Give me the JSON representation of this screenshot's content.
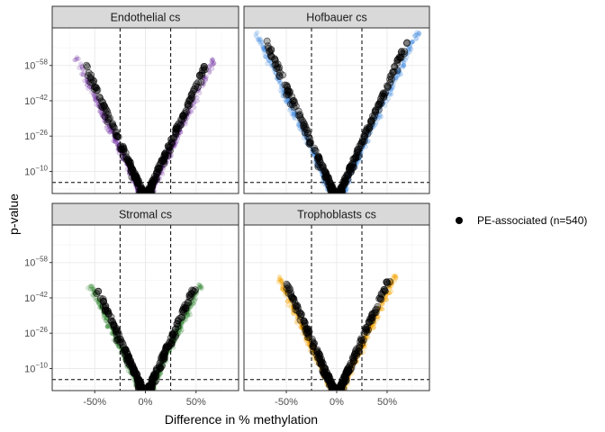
{
  "chart_data": {
    "type": "scatter",
    "xlabel": "Difference in % methylation",
    "ylabel": "p-value",
    "x_ticks": [
      "-50%",
      "0%",
      "50%"
    ],
    "x_tick_values": [
      -0.5,
      0,
      0.5
    ],
    "xlim": [
      -0.92,
      0.92
    ],
    "y_ticks": [
      "10−10",
      "10−26",
      "10−42",
      "10−58"
    ],
    "y_tick_exponents": [
      -10,
      -26,
      -42,
      -58
    ],
    "ylim_neglog10": [
      0,
      75
    ],
    "vlines": [
      -0.25,
      0.25
    ],
    "hline_neglog10": 5,
    "grid": true,
    "legend": {
      "position": "right",
      "label": "PE-associated (n=540)",
      "color": "#000000"
    },
    "panels": [
      {
        "title": "Endothelial cs",
        "color": "#7B3FA8",
        "max_neglog10": 62
      },
      {
        "title": "Hofbauer cs",
        "color": "#4A90E2",
        "max_neglog10": 73
      },
      {
        "title": "Stromal cs",
        "color": "#3E8E3E",
        "max_neglog10": 48
      },
      {
        "title": "Trophoblasts cs",
        "color": "#F5A300",
        "max_neglog10": 52
      }
    ]
  }
}
